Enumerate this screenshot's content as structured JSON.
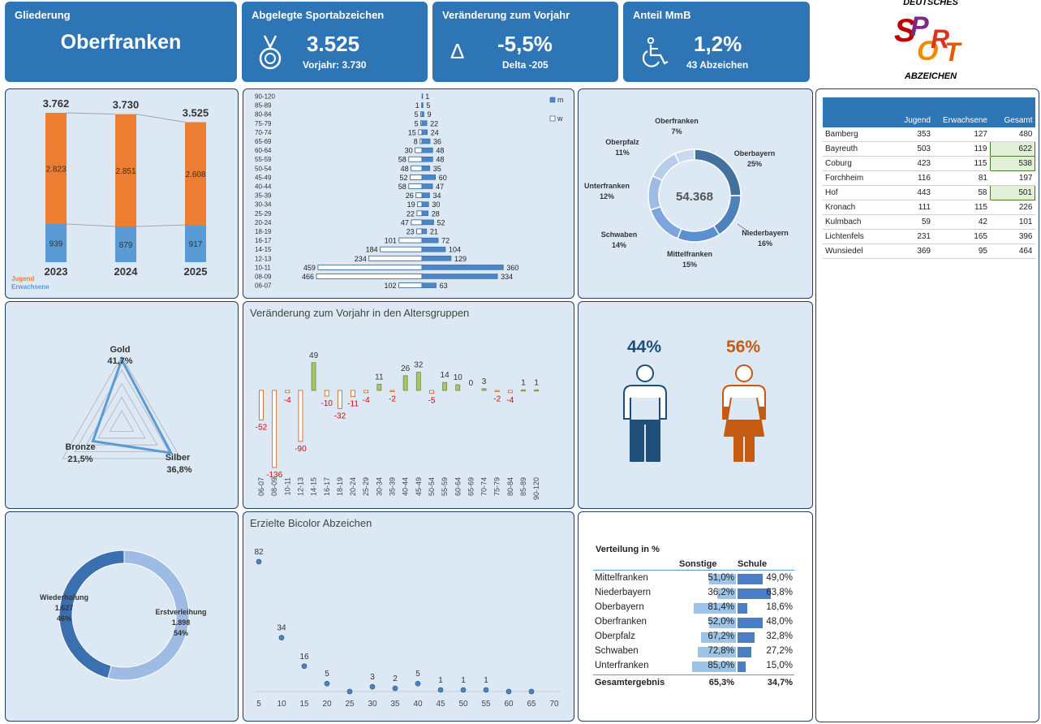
{
  "header": {
    "gliederung_label": "Gliederung",
    "region": "Oberfranken",
    "abzeichen_label": "Abgelegte Sportabzeichen",
    "abzeichen_value": "3.525",
    "abzeichen_prev": "Vorjahr: 3.730",
    "change_label": "Veränderung zum Vorjahr",
    "change_value": "-5,5%",
    "change_delta": "Delta -205",
    "mmb_label": "Anteil MmB",
    "mmb_value": "1,2%",
    "mmb_count": "43 Abzeichen",
    "delta_symbol": "Δ"
  },
  "logo": {
    "top": "DEUTSCHES",
    "bottom": "ABZEICHEN",
    "letters": [
      "S",
      "P",
      "O",
      "R",
      "T"
    ]
  },
  "years_chart": {
    "years": [
      "2023",
      "2024",
      "2025"
    ],
    "totals": [
      "3.762",
      "3.730",
      "3.525"
    ],
    "jugend": [
      2823,
      2851,
      2608
    ],
    "erwachsene": [
      939,
      879,
      917
    ],
    "jugend_labels": [
      "2.823",
      "2.851",
      "2.608"
    ],
    "erwachsene_labels": [
      "939",
      "879",
      "917"
    ],
    "legend_jugend": "Jugend",
    "legend_erwachsene": "Erwachsene",
    "color_jugend": "#ed7d31",
    "color_erwachsene": "#5b9bd5"
  },
  "pyramid": {
    "groups": [
      "90-120",
      "85-89",
      "80-84",
      "75-79",
      "70-74",
      "65-69",
      "60-64",
      "55-59",
      "50-54",
      "45-49",
      "40-44",
      "35-39",
      "30-34",
      "25-29",
      "20-24",
      "18-19",
      "16-17",
      "14-15",
      "12-13",
      "10-11",
      "08-09",
      "06-07"
    ],
    "w": [
      0,
      1,
      5,
      5,
      15,
      8,
      30,
      58,
      48,
      52,
      58,
      26,
      19,
      22,
      47,
      23,
      101,
      184,
      234,
      459,
      466,
      102
    ],
    "m": [
      1,
      5,
      9,
      22,
      24,
      36,
      48,
      48,
      35,
      60,
      47,
      34,
      30,
      28,
      52,
      21,
      72,
      104,
      129,
      360,
      334,
      63
    ],
    "legend_m": "m",
    "legend_w": "w"
  },
  "donut_regions": {
    "total": "54.368",
    "slices": [
      {
        "name": "Oberbayern",
        "pct": "25%",
        "value": 25,
        "color": "#41719c"
      },
      {
        "name": "Niederbayern",
        "pct": "16%",
        "value": 16,
        "color": "#4f81bd"
      },
      {
        "name": "Mittelfranken",
        "pct": "15%",
        "value": 15,
        "color": "#5b8fd0"
      },
      {
        "name": "Schwaben",
        "pct": "14%",
        "value": 14,
        "color": "#7ea6dc"
      },
      {
        "name": "Unterfranken",
        "pct": "12%",
        "value": 12,
        "color": "#9dbbe3"
      },
      {
        "name": "Oberpfalz",
        "pct": "11%",
        "value": 11,
        "color": "#b7cdea"
      },
      {
        "name": "Oberfranken",
        "pct": "7%",
        "value": 7,
        "color": "#c9d9ef"
      }
    ]
  },
  "district_table": {
    "headers": [
      "",
      "Jugend",
      "Erwachsene",
      "Gesamt"
    ],
    "rows": [
      {
        "name": "Bamberg",
        "jugend": "353",
        "erw": "127",
        "gesamt": "480",
        "hl": false
      },
      {
        "name": "Bayreuth",
        "jugend": "503",
        "erw": "119",
        "gesamt": "622",
        "hl": true
      },
      {
        "name": "Coburg",
        "jugend": "423",
        "erw": "115",
        "gesamt": "538",
        "hl": true
      },
      {
        "name": "Forchheim",
        "jugend": "116",
        "erw": "81",
        "gesamt": "197",
        "hl": false
      },
      {
        "name": "Hof",
        "jugend": "443",
        "erw": "58",
        "gesamt": "501",
        "hl": true
      },
      {
        "name": "Kronach",
        "jugend": "111",
        "erw": "115",
        "gesamt": "226",
        "hl": false
      },
      {
        "name": "Kulmbach",
        "jugend": "59",
        "erw": "42",
        "gesamt": "101",
        "hl": false
      },
      {
        "name": "Lichtenfels",
        "jugend": "231",
        "erw": "165",
        "gesamt": "396",
        "hl": false
      },
      {
        "name": "Wunsiedel",
        "jugend": "369",
        "erw": "95",
        "gesamt": "464",
        "hl": false
      }
    ]
  },
  "radar": {
    "gold_label": "Gold",
    "gold_pct": "41,7%",
    "gold": 41.7,
    "silber_label": "Silber",
    "silber_pct": "36,8%",
    "silber": 36.8,
    "bronze_label": "Bronze",
    "bronze_pct": "21,5%",
    "bronze": 21.5
  },
  "change_chart": {
    "title": "Veränderung zum Vorjahr in den Altersgruppen",
    "groups": [
      "06-07",
      "08-09",
      "10-11",
      "12-13",
      "14-15",
      "16-17",
      "18-19",
      "20-24",
      "25-29",
      "30-34",
      "35-39",
      "40-44",
      "45-49",
      "50-54",
      "55-59",
      "60-64",
      "65-69",
      "70-74",
      "75-79",
      "80-84",
      "85-89",
      "90-120"
    ],
    "values": [
      -52,
      -136,
      -4,
      -90,
      49,
      -10,
      -32,
      -11,
      -4,
      11,
      -2,
      26,
      32,
      -5,
      14,
      10,
      0,
      3,
      -2,
      -4,
      1,
      1
    ]
  },
  "gender": {
    "male_pct": "44%",
    "female_pct": "56%",
    "male": 44,
    "female": 56,
    "male_color": "#1f4e79",
    "female_color": "#c55a11"
  },
  "bicolor": {
    "title": "Erzielte Bicolor Abzeichen",
    "x": [
      5,
      10,
      15,
      20,
      25,
      30,
      35,
      40,
      45,
      50,
      55,
      60,
      65
    ],
    "y": [
      82,
      34,
      16,
      5,
      0,
      3,
      2,
      5,
      1,
      1,
      1,
      0,
      0
    ],
    "labels": [
      "82",
      "34",
      "16",
      "5",
      "",
      "3",
      "2",
      "5",
      "1",
      "1",
      "1",
      "",
      ""
    ],
    "ticks": [
      "5",
      "10",
      "15",
      "20",
      "25",
      "30",
      "35",
      "40",
      "45",
      "50",
      "55",
      "60",
      "65",
      "70"
    ]
  },
  "repeat_donut": {
    "wiederholung_label": "Wiederholung",
    "wiederholung_value": "1.627",
    "wiederholung_pct": "46%",
    "wiederholung": 46,
    "erst_label": "Erstverleihung",
    "erst_value": "1.898",
    "erst_pct": "54%",
    "erst": 54
  },
  "distribution": {
    "title": "Verteilung in %",
    "col_left": "Sonstige",
    "col_right": "Schule",
    "rows": [
      {
        "name": "Mittelfranken",
        "s": "51,0%",
        "sv": 51.0,
        "sc": "49,0%",
        "scv": 49.0
      },
      {
        "name": "Niederbayern",
        "s": "36,2%",
        "sv": 36.2,
        "sc": "63,8%",
        "scv": 63.8
      },
      {
        "name": "Oberbayern",
        "s": "81,4%",
        "sv": 81.4,
        "sc": "18,6%",
        "scv": 18.6
      },
      {
        "name": "Oberfranken",
        "s": "52,0%",
        "sv": 52.0,
        "sc": "48,0%",
        "scv": 48.0
      },
      {
        "name": "Oberpfalz",
        "s": "67,2%",
        "sv": 67.2,
        "sc": "32,8%",
        "scv": 32.8
      },
      {
        "name": "Schwaben",
        "s": "72,8%",
        "sv": 72.8,
        "sc": "27,2%",
        "scv": 27.2
      },
      {
        "name": "Unterfranken",
        "s": "85,0%",
        "sv": 85.0,
        "sc": "15,0%",
        "scv": 15.0
      }
    ],
    "total_label": "Gesamtergebnis",
    "total_left": "65,3%",
    "total_right": "34,7%"
  }
}
